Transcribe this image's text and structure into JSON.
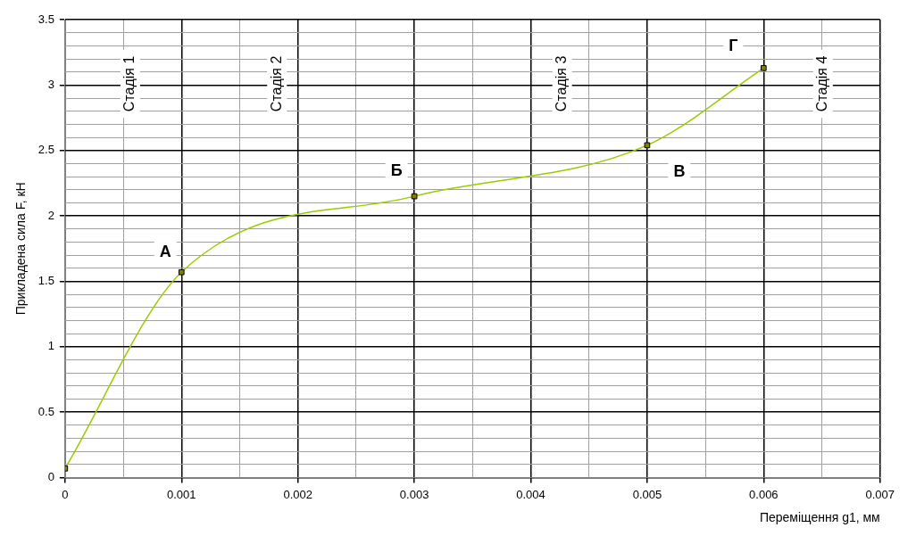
{
  "chart_data": {
    "type": "line",
    "xlabel": "Переміщення g1, мм",
    "ylabel": "Прикладена сила F, кН",
    "x": [
      0,
      0.001,
      0.003,
      0.005,
      0.006
    ],
    "series": [
      {
        "color": "#99cc00",
        "values": [
          0.07,
          1.57,
          2.15,
          2.54,
          3.13
        ]
      }
    ],
    "marker": "square",
    "line_style": "solid",
    "grid": true,
    "legend": false,
    "xlim": [
      0,
      0.007
    ],
    "xticks": [
      0,
      {
        "value": 0.0005,
        "label": null
      },
      0.001,
      {
        "value": 0.0015,
        "label": null
      },
      0.002,
      {
        "value": 0.0025,
        "label": null
      },
      0.003,
      {
        "value": 0.0035,
        "label": null
      },
      0.004,
      {
        "value": 0.0045,
        "label": null
      },
      0.005,
      {
        "value": 0.0055,
        "label": null
      },
      0.006,
      {
        "value": 0.0065,
        "label": null
      },
      0.007
    ],
    "ylim": [
      0,
      3.5
    ],
    "yticks": [
      0,
      {
        "value": 0.1,
        "label": null
      },
      {
        "value": 0.2,
        "label": null
      },
      {
        "value": 0.3,
        "label": null
      },
      {
        "value": 0.4,
        "label": null
      },
      0.5,
      {
        "value": 0.6,
        "label": null
      },
      {
        "value": 0.7,
        "label": null
      },
      {
        "value": 0.8,
        "label": null
      },
      {
        "value": 0.9,
        "label": null
      },
      1,
      {
        "value": 1.1,
        "label": null
      },
      {
        "value": 1.2,
        "label": null
      },
      {
        "value": 1.3,
        "label": null
      },
      {
        "value": 1.4,
        "label": null
      },
      1.5,
      {
        "value": 1.6,
        "label": null
      },
      {
        "value": 1.7,
        "label": null
      },
      {
        "value": 1.8,
        "label": null
      },
      {
        "value": 1.9,
        "label": null
      },
      2,
      {
        "value": 2.1,
        "label": null
      },
      {
        "value": 2.2,
        "label": null
      },
      {
        "value": 2.3,
        "label": null
      },
      {
        "value": 2.4,
        "label": null
      },
      2.5,
      {
        "value": 2.6,
        "label": null
      },
      {
        "value": 2.7,
        "label": null
      },
      {
        "value": 2.8,
        "label": null
      },
      {
        "value": 2.9,
        "label": null
      },
      3,
      {
        "value": 3.1,
        "label": null
      },
      {
        "value": 3.2,
        "label": null
      },
      {
        "value": 3.3,
        "label": null
      },
      {
        "value": 3.4,
        "label": null
      },
      3.5
    ],
    "annotations": [
      {
        "text": "А",
        "x": 0.001,
        "y": 1.57
      },
      {
        "text": "Б",
        "x": 0.003,
        "y": 2.15
      },
      {
        "text": "В",
        "x": 0.005,
        "y": 2.54
      },
      {
        "text": "Г",
        "x": 0.006,
        "y": 3.13
      },
      "Стадія 1",
      "Стадія 2",
      "Стадія 3",
      "Стадія 4"
    ]
  }
}
